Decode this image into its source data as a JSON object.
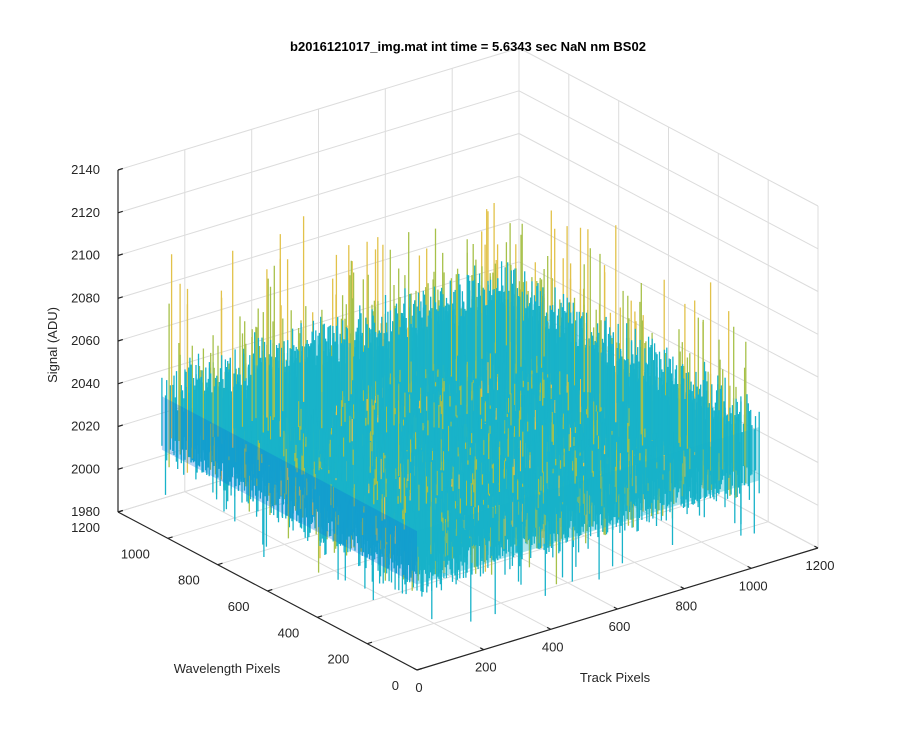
{
  "chart_data": {
    "type": "surface",
    "title": "b2016121017_img.mat int time = 5.6343 sec  NaN nm BS02",
    "xlabel": "Track Pixels",
    "ylabel": "Wavelength Pixels",
    "zlabel": "Signal (ADU)",
    "xlim": [
      0,
      1200
    ],
    "ylim": [
      0,
      1200
    ],
    "zlim": [
      1980,
      2140
    ],
    "x_ticks": [
      "0",
      "200",
      "400",
      "600",
      "800",
      "1000",
      "1200"
    ],
    "y_ticks": [
      "0",
      "200",
      "400",
      "600",
      "800",
      "1000",
      "1200"
    ],
    "z_ticks": [
      "1980",
      "2000",
      "2020",
      "2040",
      "2060",
      "2080",
      "2100",
      "2120",
      "2140"
    ],
    "x_extent": [
      0,
      1024
    ],
    "y_extent": [
      0,
      1024
    ],
    "z_baseline": 2030,
    "z_noise_range": [
      2005,
      2110
    ],
    "grid": true,
    "colormap": "parula",
    "colors": {
      "surface_low": "#0a72d9",
      "surface_mid": "#18b3c9",
      "surface_high": "#a7c14a",
      "surface_peak": "#e2c24a",
      "axis": "#262626",
      "grid": "#dcdcdc"
    }
  }
}
